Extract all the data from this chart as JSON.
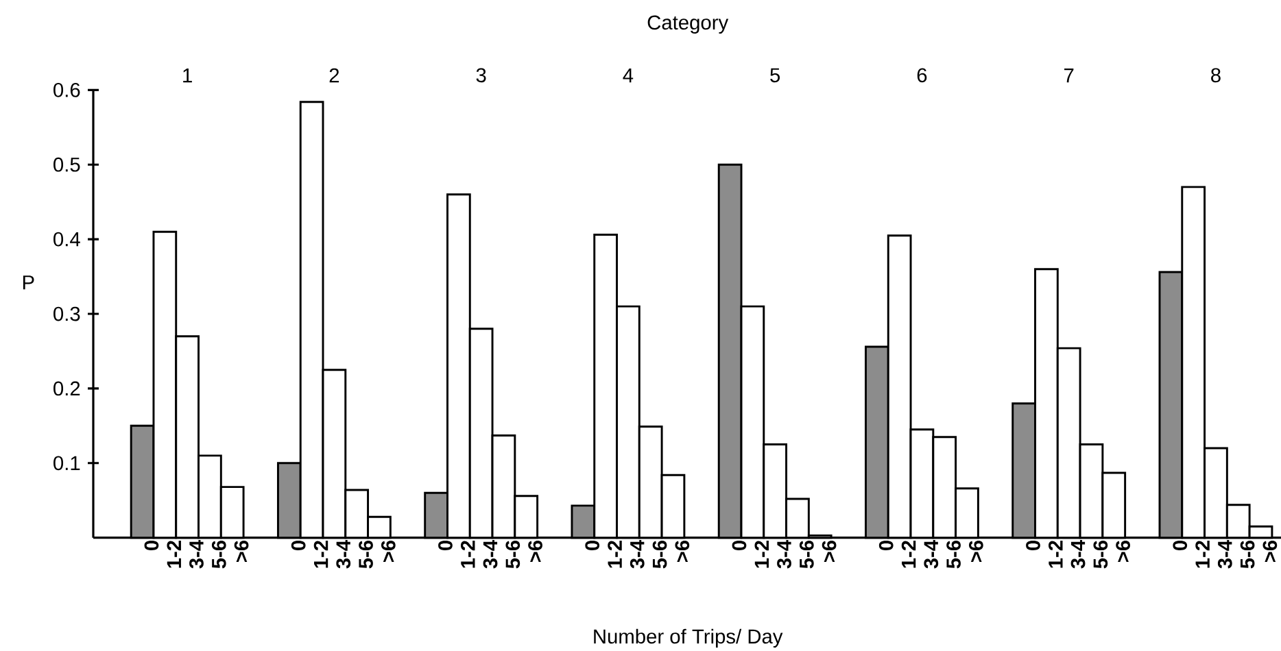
{
  "chart_data": {
    "type": "bar",
    "xlabel": "Category",
    "ylabel": "P",
    "categories": [
      "1",
      "2",
      "3",
      "4",
      "5",
      "6",
      "7",
      "8"
    ],
    "series": [
      {
        "name": "0",
        "color": "#8c8c8c",
        "values": [
          0.15,
          0.1,
          0.06,
          0.043,
          0.5,
          0.256,
          0.18,
          0.356
        ]
      },
      {
        "name": "1-2",
        "color": "#ffffff",
        "values": [
          0.41,
          0.584,
          0.46,
          0.406,
          0.31,
          0.405,
          0.36,
          0.47
        ]
      },
      {
        "name": "3-4",
        "color": "#ffffff",
        "values": [
          0.27,
          0.225,
          0.28,
          0.31,
          0.125,
          0.145,
          0.254,
          0.12
        ]
      },
      {
        "name": "5-6",
        "color": "#ffffff",
        "values": [
          0.11,
          0.064,
          0.137,
          0.149,
          0.052,
          0.135,
          0.125,
          0.044
        ]
      },
      {
        "name": ">6",
        "color": "#ffffff",
        "values": [
          0.068,
          0.028,
          0.056,
          0.084,
          0.003,
          0.066,
          0.087,
          0.015
        ]
      }
    ],
    "ylim": [
      0,
      0.6
    ],
    "yticks": [
      {
        "value": 0.1,
        "label": "0.1"
      },
      {
        "value": 0.2,
        "label": "0.2"
      },
      {
        "value": 0.3,
        "label": "0.3"
      },
      {
        "value": 0.4,
        "label": "0.4"
      },
      {
        "value": 0.5,
        "label": "0.5"
      },
      {
        "value": 0.6,
        "label": "0.6"
      }
    ],
    "annotations": [
      "Number of Trips/ Day"
    ],
    "grid": false,
    "legend": "bottom"
  }
}
